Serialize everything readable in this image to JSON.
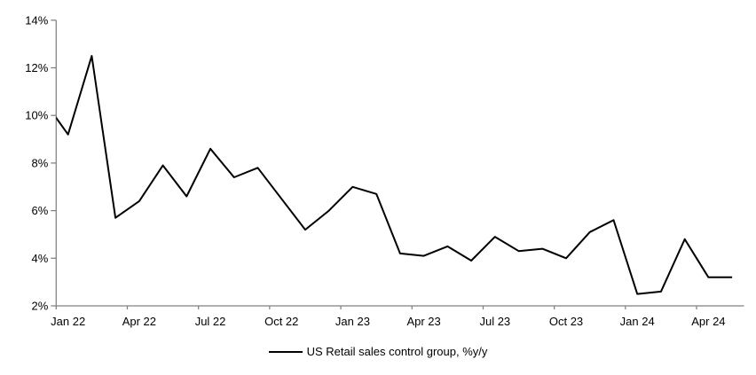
{
  "chart_data": {
    "type": "line",
    "title": "",
    "x": [
      "Dec 21",
      "Jan 22",
      "Feb 22",
      "Mar 22",
      "Apr 22",
      "May 22",
      "Jun 22",
      "Jul 22",
      "Aug 22",
      "Sep 22",
      "Oct 22",
      "Nov 22",
      "Dec 22",
      "Jan 23",
      "Feb 23",
      "Mar 23",
      "Apr 23",
      "May 23",
      "Jun 23",
      "Jul 23",
      "Aug 23",
      "Sep 23",
      "Oct 23",
      "Nov 23",
      "Dec 23",
      "Jan 24",
      "Feb 24",
      "Mar 24",
      "Apr 24",
      "May 24"
    ],
    "series": [
      {
        "name": "US Retail sales control group, %y/y",
        "color": "#000000",
        "values": [
          10.6,
          9.2,
          12.5,
          5.7,
          6.4,
          7.9,
          6.6,
          8.6,
          7.4,
          7.8,
          6.5,
          5.2,
          6.0,
          7.0,
          6.7,
          4.2,
          4.1,
          4.5,
          3.9,
          4.9,
          4.3,
          4.4,
          4.0,
          5.1,
          5.6,
          2.5,
          2.6,
          4.8,
          3.2,
          3.2
        ]
      }
    ],
    "first_point_clipped_at_left_axis": true,
    "xlabel": "",
    "ylabel": "",
    "ylim": [
      2,
      14
    ],
    "y_tick_values": [
      2,
      4,
      6,
      8,
      10,
      12,
      14
    ],
    "y_tick_labels": [
      "2%",
      "4%",
      "6%",
      "8%",
      "10%",
      "12%",
      "14%"
    ],
    "x_tick_labels": [
      "Jan 22",
      "Apr 22",
      "Jul 22",
      "Oct 22",
      "Jan 23",
      "Apr 23",
      "Jul 23",
      "Oct 23",
      "Jan 24",
      "Apr 24"
    ],
    "x_label_interval_months": 3,
    "grid": false,
    "axis_color": "#808080",
    "legend_position": "bottom-center"
  }
}
